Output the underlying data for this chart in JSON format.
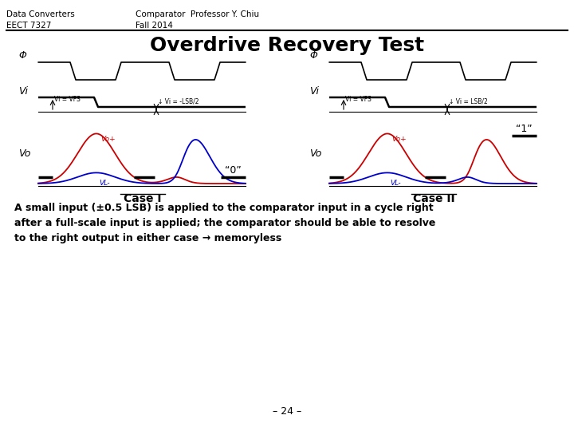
{
  "header_left": "Data Converters\nEECT 7327",
  "header_center": "Comparator  Professor Y. Chiu\nFall 2014",
  "title": "Overdrive Recovery Test",
  "case1_label": "Case I",
  "case2_label": "Case II",
  "case1_output_label": "“0”",
  "case2_output_label": "“1”",
  "phi_label": "Φ",
  "vi_label": "Vi",
  "vo_label": "Vo",
  "vi_vfs_label": "Vi = VFS",
  "vi_lsb_label1": "↓ Vi = -LSB/2",
  "vi_lsb_label2": "↓ Vi = LSB/2",
  "vo_plus_label": "Vo+",
  "vo_minus_label": "VL-",
  "body_text": "A small input (±0.5 LSB) is applied to the comparator input in a cycle right\nafter a full-scale input is applied; the comparator should be able to resolve\nto the right output in either case → memoryless",
  "page_number": "– 24 –",
  "bg_color": "#ffffff",
  "line_color": "#000000",
  "red_color": "#cc0000",
  "blue_color": "#0000cc",
  "gray_color": "#aaaaaa"
}
